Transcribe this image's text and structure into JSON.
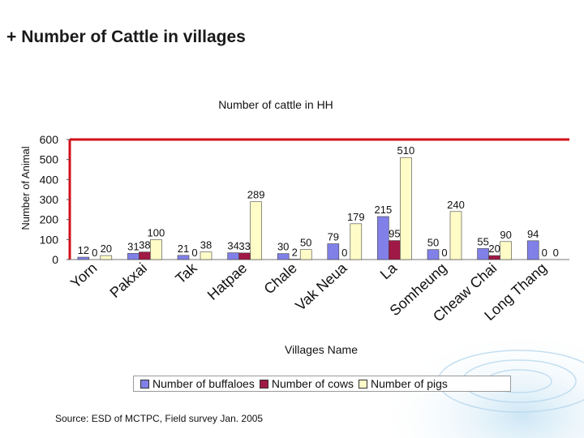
{
  "slide": {
    "title": "Number of Cattle in villages",
    "bullet": "+"
  },
  "source": "Source: ESD of MCTPC, Field survey Jan. 2005",
  "colors": {
    "buffaloes": "#8080e8",
    "cows": "#a01845",
    "pigs": "#fffcc8",
    "accent_line": "#d2101a"
  },
  "chart_data": {
    "type": "bar",
    "title": "Number of cattle in HH",
    "xlabel": "Villages Name",
    "ylabel": "Number of Animal",
    "ylim": [
      0,
      600
    ],
    "yticks": [
      "0",
      "100",
      "200",
      "300",
      "400",
      "500",
      "600"
    ],
    "categories": [
      "Yorn",
      "Pakxai",
      "Tak",
      "Hatpae",
      "Chale",
      "Vak Neua",
      "La",
      "Somheung",
      "Cheaw Chai",
      "Long Thang"
    ],
    "series": [
      {
        "name": "Number of buffaloes",
        "values": [
          12,
          31,
          21,
          34,
          30,
          79,
          215,
          50,
          55,
          94
        ]
      },
      {
        "name": "Number of cows",
        "values": [
          0,
          38,
          0,
          33,
          2,
          0,
          95,
          0,
          20,
          0
        ]
      },
      {
        "name": "Number of pigs",
        "values": [
          20,
          100,
          38,
          289,
          50,
          179,
          510,
          240,
          90,
          0
        ]
      }
    ]
  }
}
